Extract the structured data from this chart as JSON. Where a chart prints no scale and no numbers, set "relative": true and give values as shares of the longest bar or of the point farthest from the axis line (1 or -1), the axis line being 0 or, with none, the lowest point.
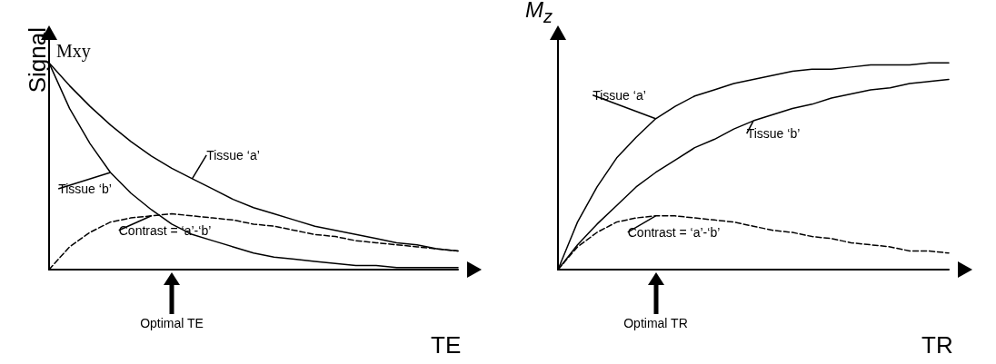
{
  "chart_data": [
    {
      "type": "line",
      "relative": true,
      "ylabel": "Signal",
      "xlabel": "TE",
      "legend": false,
      "marker": "none",
      "grid": false,
      "categories": [
        null,
        null,
        null,
        null,
        null,
        null,
        null,
        null,
        null,
        null,
        null,
        null,
        null,
        null,
        null,
        null,
        null,
        null,
        null,
        null,
        null
      ],
      "annotations": [
        "Mxy",
        "Optimal TE"
      ],
      "series": [
        {
          "name": "Tissue ‘a’",
          "color": "#000000",
          "values": [
            1,
            0.89,
            0.79,
            0.7,
            0.62,
            0.55,
            0.49,
            0.44,
            0.39,
            0.34,
            0.3,
            0.27,
            0.24,
            0.21,
            0.19,
            0.17,
            0.15,
            0.13,
            0.12,
            0.1,
            0.09
          ]
        },
        {
          "name": "Tissue ‘b’",
          "color": "#000000",
          "values": [
            1,
            0.78,
            0.61,
            0.47,
            0.37,
            0.29,
            0.22,
            0.17,
            0.14,
            0.11,
            0.08,
            0.06,
            0.05,
            0.04,
            0.03,
            0.02,
            0.02,
            0.01,
            0.01,
            0.01,
            0.01
          ]
        },
        {
          "name": "Contrast = ‘a’-‘b’",
          "color": "#000000",
          "line_style": "dashed",
          "values": [
            0,
            0.11,
            0.18,
            0.23,
            0.25,
            0.26,
            0.27,
            0.26,
            0.25,
            0.24,
            0.22,
            0.21,
            0.19,
            0.17,
            0.16,
            0.14,
            0.13,
            0.12,
            0.11,
            0.1,
            0.09
          ]
        }
      ]
    },
    {
      "type": "line",
      "relative": true,
      "ylabel": "M$_{z}$",
      "xlabel": "TR",
      "legend": false,
      "marker": "none",
      "grid": false,
      "categories": [
        null,
        null,
        null,
        null,
        null,
        null,
        null,
        null,
        null,
        null,
        null,
        null,
        null,
        null,
        null,
        null,
        null,
        null,
        null,
        null,
        null
      ],
      "annotations": [
        "Optimal TR"
      ],
      "series": [
        {
          "name": "Tissue ‘a’",
          "color": "#000000",
          "values": [
            0,
            0.23,
            0.4,
            0.54,
            0.64,
            0.73,
            0.79,
            0.84,
            0.87,
            0.9,
            0.92,
            0.94,
            0.96,
            0.97,
            0.97,
            0.98,
            0.99,
            0.99,
            0.99,
            1,
            1
          ]
        },
        {
          "name": "Tissue ‘b’",
          "color": "#000000",
          "values": [
            0,
            0.12,
            0.22,
            0.31,
            0.4,
            0.47,
            0.53,
            0.59,
            0.63,
            0.68,
            0.72,
            0.75,
            0.78,
            0.8,
            0.83,
            0.85,
            0.87,
            0.88,
            0.9,
            0.91,
            0.92
          ]
        },
        {
          "name": "Contrast = ‘a’-‘b’",
          "color": "#000000",
          "line_style": "dashed",
          "values": [
            0,
            0.11,
            0.18,
            0.23,
            0.25,
            0.26,
            0.26,
            0.25,
            0.24,
            0.23,
            0.21,
            0.19,
            0.18,
            0.16,
            0.15,
            0.13,
            0.12,
            0.11,
            0.09,
            0.09,
            0.08
          ]
        }
      ]
    }
  ]
}
